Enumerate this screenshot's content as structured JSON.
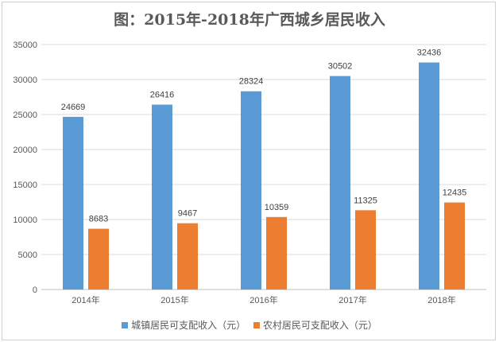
{
  "chart_data": {
    "type": "bar",
    "title": "图：2015年-2018年广西城乡居民收入",
    "categories": [
      "2014年",
      "2015年",
      "2016年",
      "2017年",
      "2018年"
    ],
    "series": [
      {
        "name": "城镇居民可支配收入（元）",
        "values": [
          24669,
          26416,
          28324,
          30502,
          32436
        ],
        "color": "#5b9bd5"
      },
      {
        "name": "农村居民可支配收入（元）",
        "values": [
          8683,
          9467,
          10359,
          11325,
          12435
        ],
        "color": "#ed7d31"
      }
    ],
    "ylim": [
      0,
      35000
    ],
    "yticks": [
      0,
      5000,
      10000,
      15000,
      20000,
      25000,
      30000,
      35000
    ],
    "grid": true,
    "legend": "bottom",
    "data_labels": true
  }
}
